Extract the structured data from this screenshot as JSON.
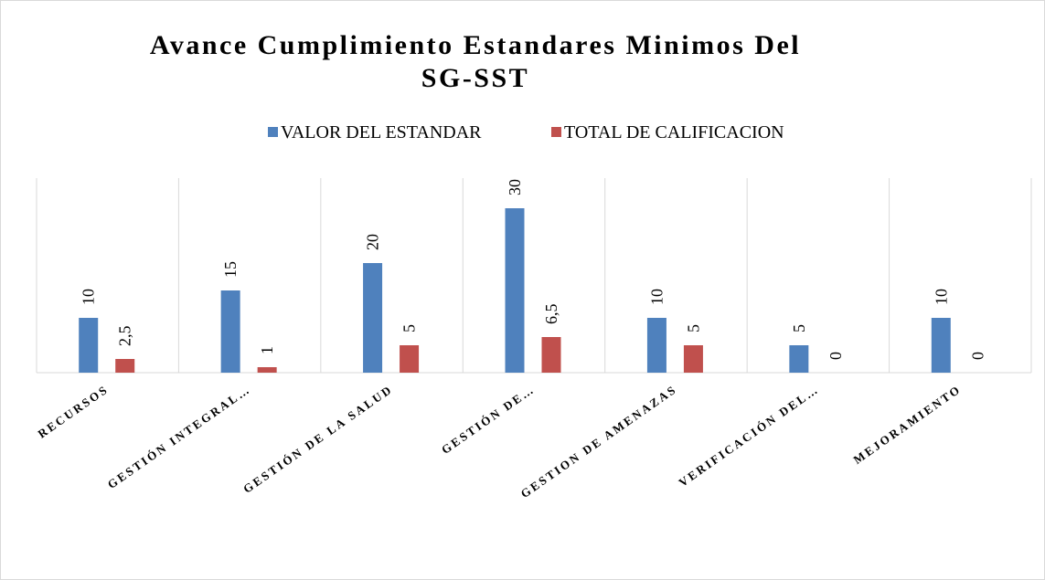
{
  "chart_data": {
    "type": "bar",
    "title": "Avance Cumplimiento Estandares Minimos Del SG-SST",
    "categories": [
      "RECURSOS",
      "GESTIÓN INTEGRAL…",
      "GESTIÓN DE LA SALUD",
      "GESTIÓN DE…",
      "GESTION DE AMENAZAS",
      "VERIFICACIÓN DEL…",
      "MEJORAMIENTO"
    ],
    "series": [
      {
        "name": "VALOR DEL ESTANDAR",
        "color": "#4f81bd",
        "values": [
          10,
          15,
          20,
          30,
          10,
          5,
          10
        ]
      },
      {
        "name": "TOTAL DE CALIFICACION",
        "color": "#c0504d",
        "values": [
          2.5,
          1,
          5,
          6.5,
          5,
          0,
          0
        ],
        "value_labels": [
          "2,5",
          "1",
          "5",
          "6,5",
          "5",
          "0",
          "0"
        ]
      }
    ],
    "ylim": [
      0,
      36
    ],
    "legend": "top"
  }
}
